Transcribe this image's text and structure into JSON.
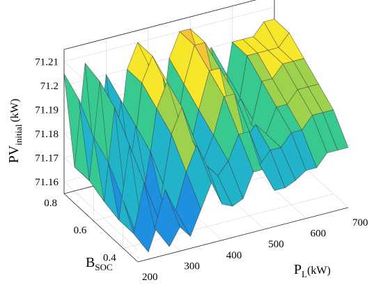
{
  "chart_data": {
    "type": "surface",
    "z_axis": {
      "label_main": "PV",
      "label_sub": "initial",
      "label_unit": "(kW)",
      "ticks": [
        "71.16",
        "71.17",
        "71.18",
        "71.19",
        "71.2",
        "71.21"
      ],
      "range": [
        71.155,
        71.215
      ]
    },
    "x_axis": {
      "label_main": "P",
      "label_sub": "L",
      "label_unit": "(kW)",
      "ticks": [
        "200",
        "300",
        "400",
        "500",
        "600",
        "700"
      ],
      "range": [
        200,
        700
      ]
    },
    "y_axis": {
      "label_main": "B",
      "label_sub": "SOC",
      "ticks": [
        "0.4",
        "0.6",
        "0.8"
      ],
      "range": [
        0.3,
        0.8
      ]
    },
    "colormap": [
      "#3b2cd8",
      "#1f8fe0",
      "#21b3c9",
      "#37c98f",
      "#9fd24c",
      "#f7e629",
      "#f6c43a"
    ],
    "grid": true,
    "surface_rows": [
      {
        "b_soc": 0.8,
        "values": [
          71.205,
          71.165,
          71.207,
          71.16,
          71.2,
          71.163,
          71.2,
          71.21,
          71.2,
          71.165,
          71.2,
          71.21,
          71.21,
          71.195,
          71.2,
          71.175,
          71.2,
          71.2,
          71.2,
          71.205,
          71.205
        ]
      },
      {
        "b_soc": 0.7,
        "values": [
          71.2,
          71.165,
          71.205,
          71.16,
          71.195,
          71.163,
          71.2,
          71.21,
          71.2,
          71.17,
          71.195,
          71.21,
          71.21,
          71.19,
          71.195,
          71.175,
          71.2,
          71.2,
          71.2,
          71.2,
          71.205
        ]
      },
      {
        "b_soc": 0.6,
        "values": [
          71.19,
          71.162,
          71.2,
          71.16,
          71.19,
          71.165,
          71.195,
          71.205,
          71.19,
          71.172,
          71.19,
          71.205,
          71.205,
          71.185,
          71.19,
          71.178,
          71.195,
          71.195,
          71.2,
          71.2,
          71.2
        ]
      },
      {
        "b_soc": 0.5,
        "values": [
          71.185,
          71.16,
          71.19,
          71.16,
          71.185,
          71.165,
          71.19,
          71.2,
          71.185,
          71.175,
          71.185,
          71.2,
          71.2,
          71.18,
          71.185,
          71.18,
          71.19,
          71.19,
          71.195,
          71.195,
          71.195
        ]
      },
      {
        "b_soc": 0.4,
        "values": [
          71.175,
          71.16,
          71.18,
          71.16,
          71.175,
          71.165,
          71.18,
          71.19,
          71.18,
          71.175,
          71.18,
          71.19,
          71.19,
          71.175,
          71.18,
          71.18,
          71.185,
          71.185,
          71.19,
          71.19,
          71.19
        ]
      },
      {
        "b_soc": 0.3,
        "values": [
          71.165,
          71.158,
          71.17,
          71.158,
          71.165,
          71.16,
          71.17,
          71.18,
          71.17,
          71.168,
          71.17,
          71.18,
          71.18,
          71.17,
          71.17,
          71.172,
          71.175,
          71.175,
          71.18,
          71.18,
          71.18
        ]
      }
    ]
  }
}
